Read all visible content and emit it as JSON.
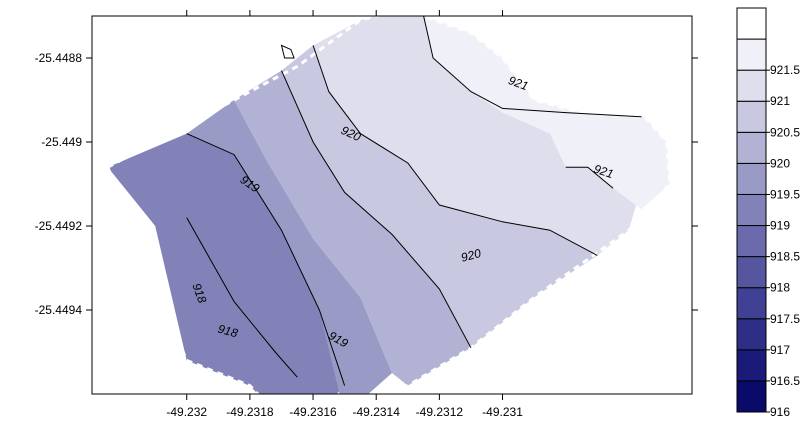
{
  "chart_data": {
    "type": "heatmap",
    "subtype": "filled-contour-map",
    "title": "",
    "xlabel": "",
    "ylabel": "",
    "xlim": [
      -49.2323,
      -49.2304
    ],
    "ylim": [
      -25.4496,
      -25.4487
    ],
    "x_ticks": [
      -49.232,
      -49.2318,
      -49.2316,
      -49.2314,
      -49.2312,
      -49.231
    ],
    "x_tick_labels": [
      "-49.232",
      "-49.2318",
      "-49.2316",
      "-49.2314",
      "-49.2312",
      "-49.231"
    ],
    "y_ticks": [
      -25.4488,
      -25.449,
      -25.4492,
      -25.4494
    ],
    "y_tick_labels": [
      "-25.4488",
      "-25.449",
      "-25.4492",
      "-25.4494"
    ],
    "grid": false,
    "legend_placement": "right",
    "color_scale": {
      "levels": [
        916,
        916.5,
        917,
        917.5,
        918,
        918.5,
        919,
        919.5,
        920,
        920.5,
        921,
        921.5
      ],
      "labels": [
        "916",
        "916.5",
        "917",
        "917.5",
        "918",
        "918.5",
        "919",
        "919.5",
        "920",
        "920.5",
        "921",
        "921.5"
      ],
      "colors": [
        "#0a0a6a",
        "#1a1a78",
        "#2e2e86",
        "#404094",
        "#5656a0",
        "#6a6aac",
        "#8282b8",
        "#9a9ac6",
        "#b2b2d4",
        "#c8c8e0",
        "#dedeed",
        "#f0f0f8",
        "#ffffff"
      ]
    },
    "region": [
      [
        -49.23225,
        -25.44906
      ],
      [
        -49.23205,
        -25.44898
      ],
      [
        -49.23185,
        -25.4489
      ],
      [
        -49.23165,
        -25.44882
      ],
      [
        -49.23145,
        -25.44871
      ],
      [
        -49.2313,
        -25.44868
      ],
      [
        -49.23125,
        -25.4487
      ],
      [
        -49.2311,
        -25.44874
      ],
      [
        -49.231,
        -25.4488
      ],
      [
        -49.2309,
        -25.4489
      ],
      [
        -49.23075,
        -25.44893
      ],
      [
        -49.23055,
        -25.44894
      ],
      [
        -49.23048,
        -25.449
      ],
      [
        -49.23047,
        -25.4491
      ],
      [
        -49.2306,
        -25.44921
      ],
      [
        -49.23075,
        -25.44929
      ],
      [
        -49.2309,
        -25.44937
      ],
      [
        -49.2311,
        -25.44949
      ],
      [
        -49.2313,
        -25.44958
      ],
      [
        -49.2315,
        -25.44965
      ],
      [
        -49.23165,
        -25.4497
      ],
      [
        -49.2318,
        -25.44958
      ],
      [
        -49.232,
        -25.44952
      ]
    ],
    "bands": [
      {
        "level_min": 917.5,
        "level_max": 918,
        "polygon": [
          [
            -49.232,
            -25.44918
          ],
          [
            -49.232,
            -25.44952
          ],
          [
            -49.2318,
            -25.44958
          ],
          [
            -49.23172,
            -25.4495
          ],
          [
            -49.23185,
            -25.44938
          ],
          [
            -49.232,
            -25.44918
          ]
        ]
      },
      {
        "level_min": 918,
        "level_max": 918.5,
        "polygon": [
          [
            -49.2321,
            -25.4491
          ],
          [
            -49.232,
            -25.44918
          ],
          [
            -49.23185,
            -25.44938
          ],
          [
            -49.23172,
            -25.4495
          ],
          [
            -49.23165,
            -25.44956
          ],
          [
            -49.23166,
            -25.4495
          ],
          [
            -49.2318,
            -25.44935
          ],
          [
            -49.232,
            -25.44912
          ]
        ]
      },
      {
        "level_min": 918.5,
        "level_max": 919,
        "polygon": [
          [
            -49.23225,
            -25.44906
          ],
          [
            -49.232,
            -25.44898
          ],
          [
            -49.23185,
            -25.44903
          ],
          [
            -49.2317,
            -25.44921
          ],
          [
            -49.23158,
            -25.4494
          ],
          [
            -49.2315,
            -25.44958
          ],
          [
            -49.23165,
            -25.4497
          ],
          [
            -49.2318,
            -25.44958
          ],
          [
            -49.232,
            -25.44952
          ],
          [
            -49.2321,
            -25.4492
          ]
        ]
      },
      {
        "level_min": 919,
        "level_max": 919.5,
        "polygon": [
          [
            -49.232,
            -25.44898
          ],
          [
            -49.23185,
            -25.4489
          ],
          [
            -49.23175,
            -25.44904
          ],
          [
            -49.2316,
            -25.44923
          ],
          [
            -49.23145,
            -25.44937
          ],
          [
            -49.23135,
            -25.44955
          ],
          [
            -49.2315,
            -25.44965
          ],
          [
            -49.23158,
            -25.4494
          ],
          [
            -49.2317,
            -25.44921
          ],
          [
            -49.23185,
            -25.44903
          ]
        ]
      },
      {
        "level_min": 919.5,
        "level_max": 920,
        "polygon": [
          [
            -49.23185,
            -25.4489
          ],
          [
            -49.2317,
            -25.44883
          ],
          [
            -49.2316,
            -25.449
          ],
          [
            -49.2315,
            -25.44912
          ],
          [
            -49.23135,
            -25.44922
          ],
          [
            -49.2312,
            -25.44935
          ],
          [
            -49.2311,
            -25.44949
          ],
          [
            -49.2313,
            -25.44958
          ],
          [
            -49.23135,
            -25.44955
          ],
          [
            -49.23145,
            -25.44937
          ],
          [
            -49.2316,
            -25.44923
          ],
          [
            -49.23175,
            -25.44904
          ]
        ]
      },
      {
        "level_min": 920,
        "level_max": 920.5,
        "polygon": [
          [
            -49.2317,
            -25.44883
          ],
          [
            -49.2316,
            -25.44877
          ],
          [
            -49.23155,
            -25.44888
          ],
          [
            -49.23145,
            -25.44898
          ],
          [
            -49.2313,
            -25.44905
          ],
          [
            -49.2312,
            -25.44915
          ],
          [
            -49.231,
            -25.44919
          ],
          [
            -49.23085,
            -25.44921
          ],
          [
            -49.2307,
            -25.44927
          ],
          [
            -49.2309,
            -25.44937
          ],
          [
            -49.2311,
            -25.44949
          ],
          [
            -49.2312,
            -25.44935
          ],
          [
            -49.23135,
            -25.44922
          ],
          [
            -49.2315,
            -25.44912
          ],
          [
            -49.2316,
            -25.449
          ]
        ]
      },
      {
        "level_min": 920.5,
        "level_max": 921,
        "polygon": [
          [
            -49.2316,
            -25.44877
          ],
          [
            -49.23145,
            -25.44871
          ],
          [
            -49.2313,
            -25.44868
          ],
          [
            -49.23125,
            -25.4487
          ],
          [
            -49.23122,
            -25.4488
          ],
          [
            -49.2311,
            -25.44888
          ],
          [
            -49.231,
            -25.44892
          ],
          [
            -49.2308,
            -25.44893
          ],
          [
            -49.23056,
            -25.44894
          ],
          [
            -49.23055,
            -25.44908
          ],
          [
            -49.2306,
            -25.44921
          ],
          [
            -49.2307,
            -25.44927
          ],
          [
            -49.23085,
            -25.44921
          ],
          [
            -49.231,
            -25.44919
          ],
          [
            -49.2312,
            -25.44915
          ],
          [
            -49.2313,
            -25.44905
          ],
          [
            -49.23145,
            -25.44898
          ],
          [
            -49.23155,
            -25.44888
          ]
        ]
      },
      {
        "level_min": 921,
        "level_max": 921.5,
        "polygon": [
          [
            -49.23125,
            -25.4487
          ],
          [
            -49.2311,
            -25.44874
          ],
          [
            -49.231,
            -25.4488
          ],
          [
            -49.2309,
            -25.4489
          ],
          [
            -49.23075,
            -25.44893
          ],
          [
            -49.23055,
            -25.44894
          ],
          [
            -49.23048,
            -25.449
          ],
          [
            -49.23047,
            -25.4491
          ],
          [
            -49.23056,
            -25.44916
          ],
          [
            -49.23065,
            -25.44911
          ],
          [
            -49.23073,
            -25.44906
          ],
          [
            -49.2308,
            -25.44906
          ],
          [
            -49.23085,
            -25.44898
          ],
          [
            -49.231,
            -25.44893
          ],
          [
            -49.2311,
            -25.44888
          ],
          [
            -49.23122,
            -25.4488
          ]
        ]
      }
    ],
    "contours": [
      {
        "level": 918,
        "points": [
          [
            -49.232,
            -25.44918
          ],
          [
            -49.23185,
            -25.44938
          ],
          [
            -49.23172,
            -25.4495
          ],
          [
            -49.23165,
            -25.44956
          ]
        ]
      },
      {
        "level": 919,
        "points": [
          [
            -49.232,
            -25.44898
          ],
          [
            -49.23185,
            -25.44903
          ],
          [
            -49.2317,
            -25.44921
          ],
          [
            -49.23158,
            -25.4494
          ],
          [
            -49.2315,
            -25.44958
          ]
        ]
      },
      {
        "level": 920,
        "points": [
          [
            -49.2317,
            -25.44883
          ],
          [
            -49.2316,
            -25.449
          ],
          [
            -49.2315,
            -25.44912
          ],
          [
            -49.23135,
            -25.44922
          ],
          [
            -49.2312,
            -25.44935
          ],
          [
            -49.2311,
            -25.44949
          ]
        ]
      },
      {
        "level": 920,
        "points": [
          [
            -49.2316,
            -25.44877
          ],
          [
            -49.23155,
            -25.44888
          ],
          [
            -49.23145,
            -25.44898
          ],
          [
            -49.2313,
            -25.44905
          ],
          [
            -49.2312,
            -25.44915
          ],
          [
            -49.231,
            -25.44919
          ],
          [
            -49.23085,
            -25.44921
          ],
          [
            -49.2307,
            -25.44927
          ]
        ]
      },
      {
        "level": 921,
        "points": [
          [
            -49.23125,
            -25.4487
          ],
          [
            -49.23122,
            -25.4488
          ],
          [
            -49.2311,
            -25.44888
          ],
          [
            -49.231,
            -25.44892
          ],
          [
            -49.2308,
            -25.44893
          ],
          [
            -49.23056,
            -25.44894
          ]
        ]
      },
      {
        "level": 921,
        "points": [
          [
            -49.23065,
            -25.44911
          ],
          [
            -49.23073,
            -25.44906
          ],
          [
            -49.2308,
            -25.44906
          ]
        ]
      },
      {
        "level": 921,
        "points": [
          [
            -49.23167,
            -25.44878
          ],
          [
            -49.2317,
            -25.44877
          ],
          [
            -49.23169,
            -25.4488
          ],
          [
            -49.23166,
            -25.4488
          ],
          [
            -49.23167,
            -25.44878
          ]
        ],
        "closed": true
      }
    ],
    "contour_labels": [
      {
        "text": "921",
        "x": -49.23095,
        "y": -25.44886,
        "angle": 20
      },
      {
        "text": "920",
        "x": -49.23148,
        "y": -25.44898,
        "angle": 25
      },
      {
        "text": "919",
        "x": -49.2318,
        "y": -25.4491,
        "angle": 35
      },
      {
        "text": "921",
        "x": -49.23068,
        "y": -25.44907,
        "angle": 18
      },
      {
        "text": "920",
        "x": -49.2311,
        "y": -25.44927,
        "angle": -15
      },
      {
        "text": "918",
        "x": -49.23196,
        "y": -25.44936,
        "angle": 70
      },
      {
        "text": "919",
        "x": -49.23152,
        "y": -25.44947,
        "angle": 30
      },
      {
        "text": "918",
        "x": -49.23187,
        "y": -25.44945,
        "angle": 15
      }
    ]
  }
}
